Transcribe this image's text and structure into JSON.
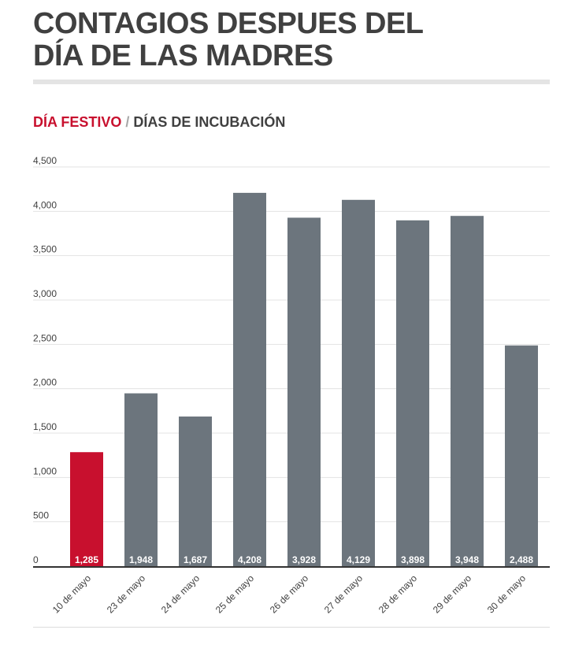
{
  "header": {
    "title_line1": "CONTAGIOS DESPUES DEL",
    "title_line2": "DÍA DE LAS MADRES",
    "legend_festivo": "DÍA FESTIVO",
    "legend_separator": " / ",
    "legend_incubacion": "DÍAS DE INCUBACIÓN"
  },
  "colors": {
    "festivo": "#c8102e",
    "incubacion": "#6c757d"
  },
  "chart_data": {
    "type": "bar",
    "title": "",
    "xlabel": "",
    "ylabel": "",
    "categories": [
      "10 de mayo",
      "23 de mayo",
      "24 de mayo",
      "25 de mayo",
      "26 de mayo",
      "27 de mayo",
      "28 de mayo",
      "29 de mayo",
      "30 de mayo"
    ],
    "values": [
      1285,
      1948,
      1687,
      4208,
      3928,
      4129,
      3898,
      3948,
      2488
    ],
    "value_labels": [
      "1,285",
      "1,948",
      "1,687",
      "4,208",
      "3,928",
      "4,129",
      "3,898",
      "3,948",
      "2,488"
    ],
    "highlight": [
      "festivo",
      "incubacion",
      "incubacion",
      "incubacion",
      "incubacion",
      "incubacion",
      "incubacion",
      "incubacion",
      "incubacion"
    ],
    "ylim": [
      0,
      4500
    ],
    "yticks": [
      0,
      500,
      1000,
      1500,
      2000,
      2500,
      3000,
      3500,
      4000,
      4500
    ],
    "ytick_labels": [
      "0",
      "500",
      "1,000",
      "1,500",
      "2,000",
      "2,500",
      "3,000",
      "3,500",
      "4,000",
      "4,500"
    ],
    "grid": true,
    "legend": "top-left"
  }
}
